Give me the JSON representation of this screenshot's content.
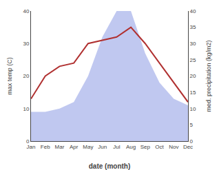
{
  "chart_data": {
    "type": "line",
    "xlabel": "date (month)",
    "ylabel": "max temp (C)",
    "y2label": "med. precipitation (kg/m2)",
    "categories": [
      "Jan",
      "Feb",
      "Mar",
      "Apr",
      "May",
      "Jun",
      "Jul",
      "Aug",
      "Sep",
      "Oct",
      "Nov",
      "Dec"
    ],
    "series": [
      {
        "type": "area",
        "color": "#c0c8f0",
        "axis": "y2",
        "values": [
          9,
          9,
          10,
          12,
          20,
          32,
          40,
          40,
          27,
          18,
          13,
          11
        ]
      },
      {
        "type": "line",
        "color": "#b03030",
        "values": [
          13,
          20,
          23,
          24,
          30,
          31,
          32,
          35,
          30,
          24,
          18,
          12
        ]
      }
    ],
    "ylim": [
      0,
      40
    ],
    "yticks": [
      0,
      10,
      20,
      30,
      40
    ],
    "y2lim": [
      0,
      40
    ],
    "y2ticks": [
      0,
      5,
      10,
      15,
      20,
      25,
      30,
      35,
      40
    ],
    "grid": false
  }
}
